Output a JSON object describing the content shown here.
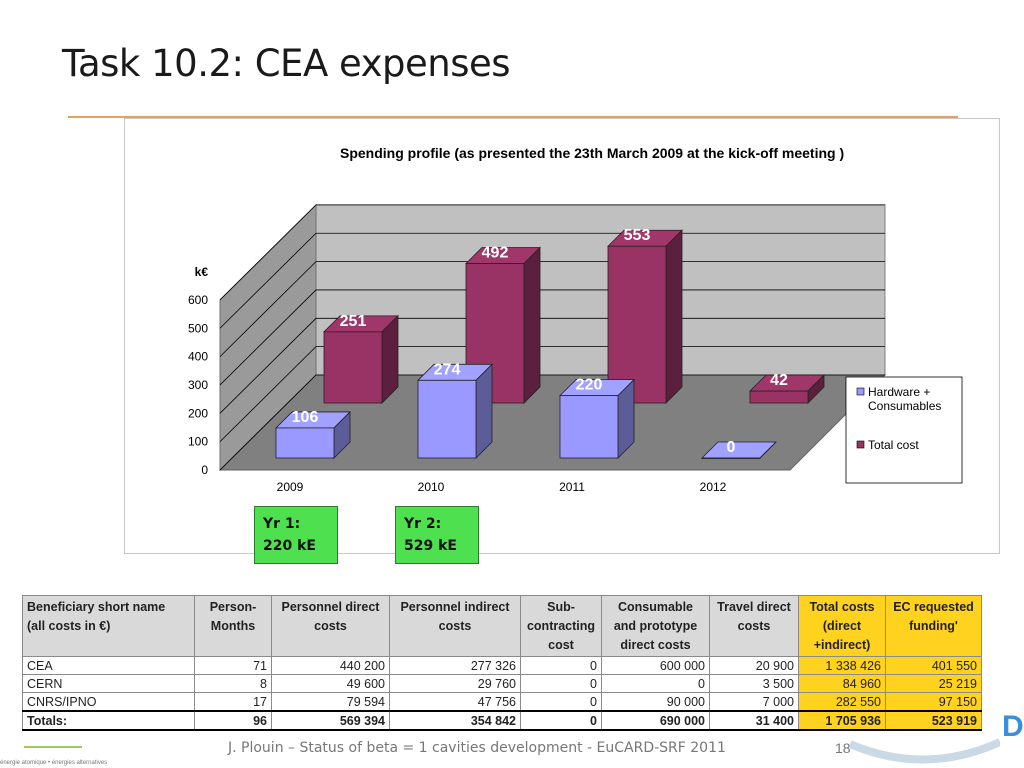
{
  "slide": {
    "title": "Task 10.2: CEA expenses",
    "footer": "J. Plouin – Status of beta = 1 cavities development - EuCARD-SRF 2011",
    "page_number": "18",
    "logo_letter": "D",
    "logo_tagline": "énergie atomique • énergies alternatives"
  },
  "chart_data": {
    "type": "bar",
    "title": "Spending profile (as presented the 23th March 2009 at the kick-off meeting )",
    "ylabel": "k€",
    "ylim": [
      0,
      600
    ],
    "yticks": [
      "0",
      "100",
      "200",
      "300",
      "400",
      "500",
      "600"
    ],
    "categories": [
      "2009",
      "2010",
      "2011",
      "2012"
    ],
    "series": [
      {
        "name": "Hardware + Consumables",
        "values": [
          106,
          274,
          220,
          0
        ],
        "color": "#9999ff"
      },
      {
        "name": "Total cost",
        "values": [
          251,
          492,
          553,
          42
        ],
        "color": "#993366"
      }
    ],
    "legend": "right",
    "grid": true
  },
  "annotations": {
    "yr1": {
      "line1": "Yr 1:",
      "line2": "220 kE"
    },
    "yr2": {
      "line1": "Yr 2:",
      "line2": "529 kE"
    }
  },
  "table": {
    "headers": [
      [
        "Beneficiary short name",
        "(all costs in €)"
      ],
      [
        "Person-",
        "Months"
      ],
      [
        "Personnel direct",
        "costs"
      ],
      [
        "Personnel indirect",
        "costs"
      ],
      [
        "Sub-",
        "contracting",
        "cost"
      ],
      [
        "Consumable",
        "and prototype",
        "direct costs"
      ],
      [
        "Travel direct",
        "costs"
      ],
      [
        "Total costs",
        "(direct",
        "+indirect)"
      ],
      [
        "EC requested",
        "funding'"
      ]
    ],
    "rows": [
      [
        "CEA",
        "71",
        "440 200",
        "277 326",
        "0",
        "600 000",
        "20 900",
        "1 338 426",
        "401 550"
      ],
      [
        "CERN",
        "8",
        "49 600",
        "29 760",
        "0",
        "0",
        "3 500",
        "84 960",
        "25 219"
      ],
      [
        "CNRS/IPNO",
        "17",
        "79 594",
        "47 756",
        "0",
        "90 000",
        "7 000",
        "282 550",
        "97 150"
      ]
    ],
    "totals": [
      "Totals:",
      "96",
      "569 394",
      "354 842",
      "0",
      "690 000",
      "31 400",
      "1 705 936",
      "523 919"
    ],
    "highlight_color": "#ffd21f"
  }
}
